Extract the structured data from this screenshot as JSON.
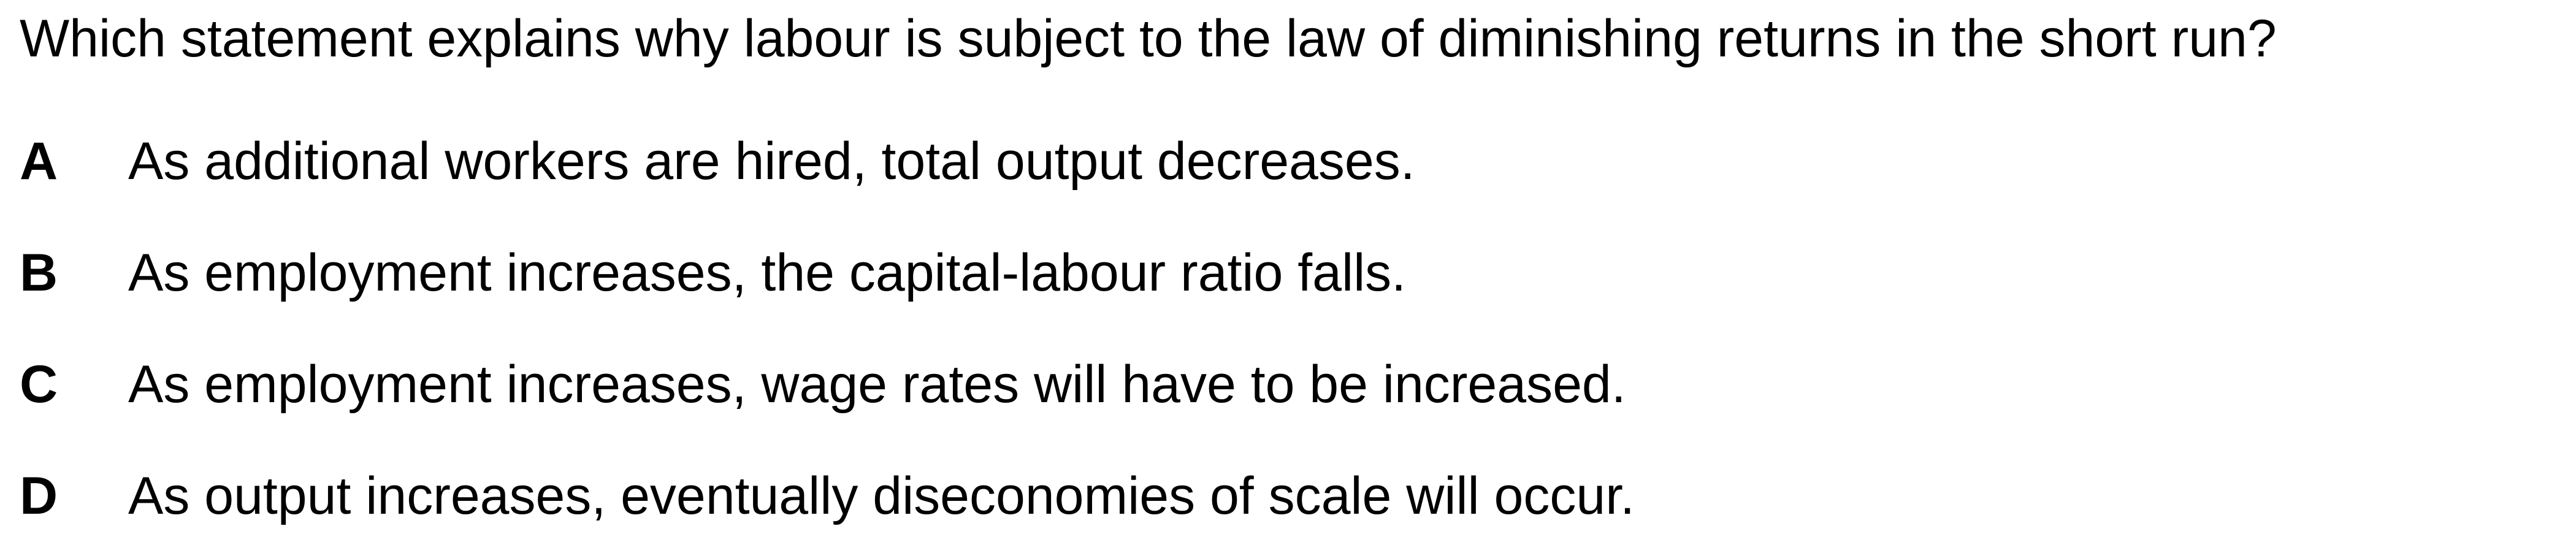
{
  "question": "Which statement explains why labour is subject to the law of diminishing returns in the short run?",
  "options": [
    {
      "letter": "A",
      "text": "As additional workers are hired, total output decreases."
    },
    {
      "letter": "B",
      "text": "As employment increases, the capital-labour ratio falls."
    },
    {
      "letter": "C",
      "text": "As employment increases, wage rates will have to be increased."
    },
    {
      "letter": "D",
      "text": "As output increases, eventually diseconomies of scale will occur."
    }
  ]
}
